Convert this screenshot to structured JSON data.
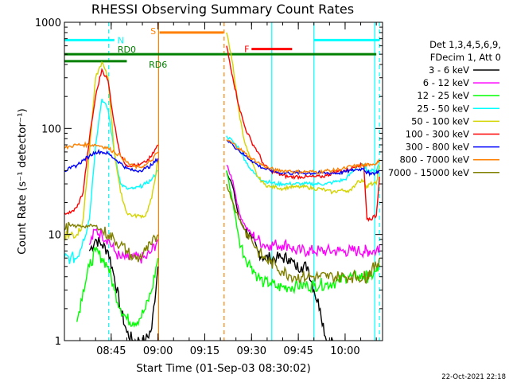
{
  "chart_data": {
    "type": "line",
    "title": "RHESSI Observing Summary Count Rates",
    "xlabel": "Start Time (01-Sep-03 08:30:02)",
    "ylabel": "Count Rate (s⁻¹ detector⁻¹)",
    "y_scale": "log",
    "ylim": [
      1,
      1000
    ],
    "xlim_minutes": [
      0,
      102
    ],
    "x_ticks": [
      {
        "minute": 15,
        "label": "08:45"
      },
      {
        "minute": 30,
        "label": "09:00"
      },
      {
        "minute": 45,
        "label": "09:15"
      },
      {
        "minute": 60,
        "label": "09:30"
      },
      {
        "minute": 75,
        "label": "09:45"
      },
      {
        "minute": 90,
        "label": "10:00"
      }
    ],
    "y_ticks": [
      {
        "value": 1,
        "label": "1"
      },
      {
        "value": 10,
        "label": "10"
      },
      {
        "value": 100,
        "label": "100"
      },
      {
        "value": 1000,
        "label": "1000"
      }
    ],
    "legend_header": [
      "Det 1,3,4,5,6,9,",
      "FDecim 1, Att 0"
    ],
    "footer_timestamp": "22-Oct-2021 22:18",
    "flags": [
      {
        "label": "N",
        "color": "#00ffff",
        "level": 680,
        "segments": [
          [
            0,
            16
          ],
          [
            80,
            101
          ]
        ]
      },
      {
        "label": "S",
        "color": "#ff8000",
        "level": 800,
        "segments": [
          [
            30.5,
            51
          ]
        ]
      },
      {
        "label": "F",
        "color": "#ff0000",
        "level": 560,
        "segments": [
          [
            60,
            73
          ]
        ]
      },
      {
        "label": "RD0",
        "color": "#008000",
        "level": 500,
        "segments": [
          [
            0,
            100
          ]
        ]
      },
      {
        "label": "RD6",
        "color": "#008000",
        "level": 430,
        "segments": [
          [
            0,
            20
          ]
        ]
      }
    ],
    "vertical_markers": [
      {
        "minute": 14.2,
        "color": "#00ffff",
        "style": "dashed"
      },
      {
        "minute": 30.2,
        "color": "#ff8000",
        "style": "solid"
      },
      {
        "minute": 51.2,
        "color": "#ff8000",
        "style": "dashed"
      },
      {
        "minute": 66.5,
        "color": "#00ffff",
        "style": "solid"
      },
      {
        "minute": 80.0,
        "color": "#00ffff",
        "style": "solid"
      },
      {
        "minute": 101.0,
        "color": "#00ffff",
        "style": "dashed"
      },
      {
        "minute": 99.5,
        "color": "#00ffff",
        "style": "solid"
      }
    ],
    "x": [
      0,
      2,
      4,
      6,
      8,
      10,
      12,
      14,
      16,
      18,
      20,
      22,
      24,
      26,
      28,
      30,
      30.3,
      51.5,
      52,
      54,
      56,
      58,
      60,
      62,
      64,
      66,
      68,
      70,
      72,
      74,
      76,
      78,
      80,
      82,
      84,
      86,
      88,
      90,
      92,
      94,
      96,
      97,
      98,
      100,
      101
    ],
    "series": [
      {
        "name": "3 - 6 keV",
        "color": "#000000",
        "values": [
          null,
          null,
          null,
          null,
          7,
          9,
          8,
          7,
          4,
          2,
          1.2,
          1,
          1,
          1,
          1.3,
          5,
          null,
          null,
          40,
          28,
          14,
          11,
          9,
          7,
          6,
          6,
          6,
          6,
          6,
          5,
          5,
          5,
          3,
          2,
          1,
          1,
          null,
          null,
          null,
          null,
          null,
          null,
          null,
          null,
          null
        ]
      },
      {
        "name": "6 - 12 keV",
        "color": "#ff00ff",
        "values": [
          null,
          null,
          null,
          null,
          8,
          11,
          10,
          9,
          7,
          6,
          6,
          6,
          6,
          6,
          7,
          9,
          null,
          null,
          45,
          32,
          16,
          12,
          10,
          9,
          8,
          8,
          8,
          8,
          8,
          7,
          7,
          7,
          7,
          7,
          7,
          7,
          7,
          7,
          7,
          7,
          7,
          7,
          7,
          7,
          8
        ]
      },
      {
        "name": "12 - 25 keV",
        "color": "#00ff00",
        "values": [
          null,
          null,
          1.5,
          3,
          5,
          7,
          6,
          5,
          3,
          2,
          1.6,
          1.5,
          1.6,
          2,
          3,
          6,
          null,
          null,
          40,
          20,
          9,
          6,
          5,
          4,
          3.5,
          3.5,
          3.2,
          3.2,
          3.2,
          3.3,
          3.3,
          3.3,
          3.3,
          3.4,
          3.4,
          3.5,
          3.6,
          4,
          4,
          4,
          4,
          4,
          4,
          4.5,
          5
        ]
      },
      {
        "name": "25 - 50 keV",
        "color": "#00ffff",
        "values": [
          6,
          6,
          6,
          9,
          14,
          70,
          190,
          150,
          60,
          30,
          27,
          27,
          28,
          30,
          33,
          40,
          null,
          null,
          85,
          75,
          65,
          50,
          40,
          35,
          32,
          31,
          30,
          30,
          30,
          30,
          30,
          30,
          30,
          30,
          30,
          31,
          32,
          33,
          38,
          45,
          45,
          40,
          40,
          40,
          48
        ]
      },
      {
        "name": "50 - 100 keV",
        "color": "#d4d400",
        "values": [
          10,
          10,
          10,
          14,
          60,
          300,
          420,
          300,
          60,
          25,
          16,
          15,
          15,
          15,
          22,
          50,
          null,
          null,
          800,
          400,
          140,
          70,
          48,
          35,
          30,
          28,
          28,
          27,
          28,
          28,
          28,
          28,
          27,
          27,
          26,
          25,
          26,
          26,
          26,
          32,
          32,
          28,
          30,
          30,
          45
        ]
      },
      {
        "name": "100 - 300 keV",
        "color": "#ff0000",
        "values": [
          16,
          16,
          18,
          25,
          80,
          200,
          360,
          280,
          110,
          55,
          45,
          45,
          45,
          48,
          55,
          70,
          null,
          null,
          600,
          300,
          160,
          100,
          75,
          60,
          45,
          40,
          38,
          36,
          35,
          35,
          35,
          35,
          35,
          35,
          36,
          38,
          40,
          40,
          42,
          45,
          45,
          14,
          14,
          15,
          35
        ]
      },
      {
        "name": "300 - 800 keV",
        "color": "#0000ff",
        "values": [
          40,
          42,
          45,
          50,
          55,
          60,
          60,
          58,
          52,
          47,
          42,
          40,
          40,
          42,
          45,
          52,
          null,
          null,
          78,
          70,
          62,
          55,
          50,
          45,
          42,
          40,
          39,
          38,
          38,
          38,
          38,
          38,
          38,
          38,
          38,
          38,
          38,
          39,
          40,
          41,
          42,
          38,
          38,
          38,
          40
        ]
      },
      {
        "name": "800 - 7000 keV",
        "color": "#ff8000",
        "values": [
          65,
          68,
          70,
          70,
          70,
          70,
          68,
          65,
          60,
          55,
          48,
          44,
          43,
          45,
          50,
          60,
          null,
          null,
          78,
          72,
          65,
          58,
          52,
          48,
          44,
          42,
          40,
          40,
          40,
          39,
          39,
          39,
          39,
          39,
          40,
          40,
          41,
          42,
          44,
          44,
          45,
          45,
          46,
          47,
          50
        ]
      },
      {
        "name": "7000 - 15000 keV",
        "color": "#808000",
        "values": [
          11,
          12,
          12,
          12,
          12,
          12,
          11,
          10,
          9,
          8,
          7,
          6,
          6,
          7,
          8,
          10,
          null,
          null,
          30,
          20,
          14,
          11,
          9,
          7,
          6,
          5.5,
          5,
          4.5,
          4.2,
          4,
          4,
          4,
          4,
          4,
          4,
          4,
          4,
          4,
          4,
          4,
          4,
          4,
          4.5,
          5,
          6
        ]
      }
    ]
  }
}
